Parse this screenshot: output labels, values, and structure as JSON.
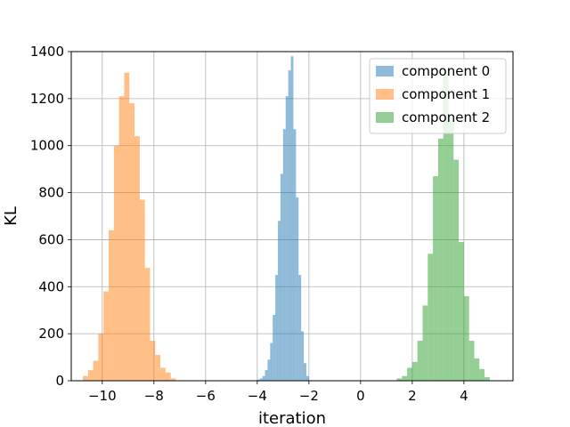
{
  "chart_data": {
    "type": "bar",
    "title": "",
    "xlabel": "iteration",
    "ylabel": "KL",
    "xlim": [
      -11.2,
      5.9
    ],
    "ylim": [
      0,
      1400
    ],
    "xticks": [
      -10,
      -8,
      -6,
      -4,
      -2,
      0,
      2,
      4
    ],
    "xtick_labels": [
      "−10",
      "−8",
      "−6",
      "−4",
      "−2",
      "0",
      "2",
      "4"
    ],
    "yticks": [
      0,
      200,
      400,
      600,
      800,
      1000,
      1200,
      1400
    ],
    "ytick_labels": [
      "0",
      "200",
      "400",
      "600",
      "800",
      "1000",
      "1200",
      "1400"
    ],
    "grid": true,
    "legend_position": "top-right",
    "series": [
      {
        "name": "component 0",
        "color": "#1f77b4",
        "alpha": 0.5,
        "bins": [
          [
            -4.0,
            -3.9,
            5
          ],
          [
            -3.9,
            -3.8,
            10
          ],
          [
            -3.8,
            -3.7,
            20
          ],
          [
            -3.7,
            -3.6,
            45
          ],
          [
            -3.6,
            -3.5,
            90
          ],
          [
            -3.5,
            -3.4,
            160
          ],
          [
            -3.4,
            -3.3,
            280
          ],
          [
            -3.3,
            -3.2,
            450
          ],
          [
            -3.2,
            -3.1,
            680
          ],
          [
            -3.1,
            -3.0,
            880
          ],
          [
            -3.0,
            -2.9,
            1070
          ],
          [
            -2.9,
            -2.8,
            1210
          ],
          [
            -2.8,
            -2.7,
            1320
          ],
          [
            -2.7,
            -2.6,
            1380
          ],
          [
            -2.6,
            -2.5,
            1070
          ],
          [
            -2.5,
            -2.4,
            780
          ],
          [
            -2.4,
            -2.3,
            450
          ],
          [
            -2.3,
            -2.2,
            210
          ],
          [
            -2.2,
            -2.1,
            75
          ],
          [
            -2.1,
            -2.0,
            20
          ]
        ]
      },
      {
        "name": "component 1",
        "color": "#ff7f0e",
        "alpha": 0.5,
        "bins": [
          [
            -10.75,
            -10.55,
            20
          ],
          [
            -10.55,
            -10.35,
            45
          ],
          [
            -10.35,
            -10.15,
            85
          ],
          [
            -10.15,
            -9.95,
            200
          ],
          [
            -9.95,
            -9.75,
            380
          ],
          [
            -9.75,
            -9.55,
            640
          ],
          [
            -9.55,
            -9.35,
            1000
          ],
          [
            -9.35,
            -9.15,
            1210
          ],
          [
            -9.15,
            -8.95,
            1310
          ],
          [
            -8.95,
            -8.75,
            1180
          ],
          [
            -8.75,
            -8.55,
            1040
          ],
          [
            -8.55,
            -8.35,
            770
          ],
          [
            -8.35,
            -8.15,
            480
          ],
          [
            -8.15,
            -7.95,
            170
          ],
          [
            -7.95,
            -7.75,
            110
          ],
          [
            -7.75,
            -7.55,
            55
          ],
          [
            -7.55,
            -7.35,
            35
          ],
          [
            -7.35,
            -7.15,
            10
          ]
        ]
      },
      {
        "name": "component 2",
        "color": "#2ca02c",
        "alpha": 0.5,
        "bins": [
          [
            1.4,
            1.6,
            10
          ],
          [
            1.6,
            1.8,
            20
          ],
          [
            1.8,
            2.0,
            55
          ],
          [
            2.0,
            2.2,
            80
          ],
          [
            2.2,
            2.4,
            170
          ],
          [
            2.4,
            2.6,
            320
          ],
          [
            2.6,
            2.8,
            540
          ],
          [
            2.8,
            3.0,
            870
          ],
          [
            3.0,
            3.2,
            1030
          ],
          [
            3.2,
            3.4,
            1300
          ],
          [
            3.4,
            3.6,
            1110
          ],
          [
            3.6,
            3.8,
            940
          ],
          [
            3.8,
            4.0,
            590
          ],
          [
            4.0,
            4.2,
            360
          ],
          [
            4.2,
            4.4,
            170
          ],
          [
            4.4,
            4.6,
            95
          ],
          [
            4.6,
            4.8,
            50
          ],
          [
            4.8,
            5.0,
            15
          ]
        ]
      }
    ]
  }
}
